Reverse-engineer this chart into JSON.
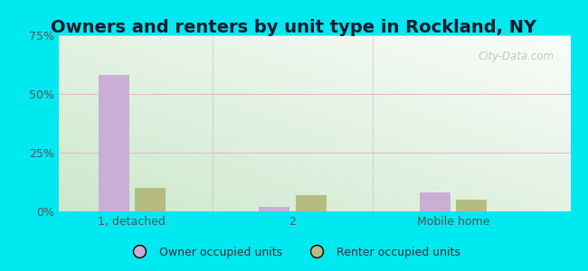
{
  "title": "Owners and renters by unit type in Rockland, NY",
  "categories": [
    "1, detached",
    "2",
    "Mobile home"
  ],
  "owner_values": [
    58,
    2,
    8
  ],
  "renter_values": [
    10,
    7,
    5
  ],
  "owner_color": "#c9aed6",
  "renter_color": "#b5bc82",
  "ylim": [
    0,
    75
  ],
  "yticks": [
    0,
    25,
    50,
    75
  ],
  "yticklabels": [
    "0%",
    "25%",
    "50%",
    "75%"
  ],
  "outer_bg": "#00e8f0",
  "title_fontsize": 14,
  "tick_fontsize": 9,
  "legend_labels": [
    "Owner occupied units",
    "Renter occupied units"
  ],
  "watermark": "City-Data.com",
  "grid_color": "#ddaacc",
  "separator_color": "#bbbbbb"
}
